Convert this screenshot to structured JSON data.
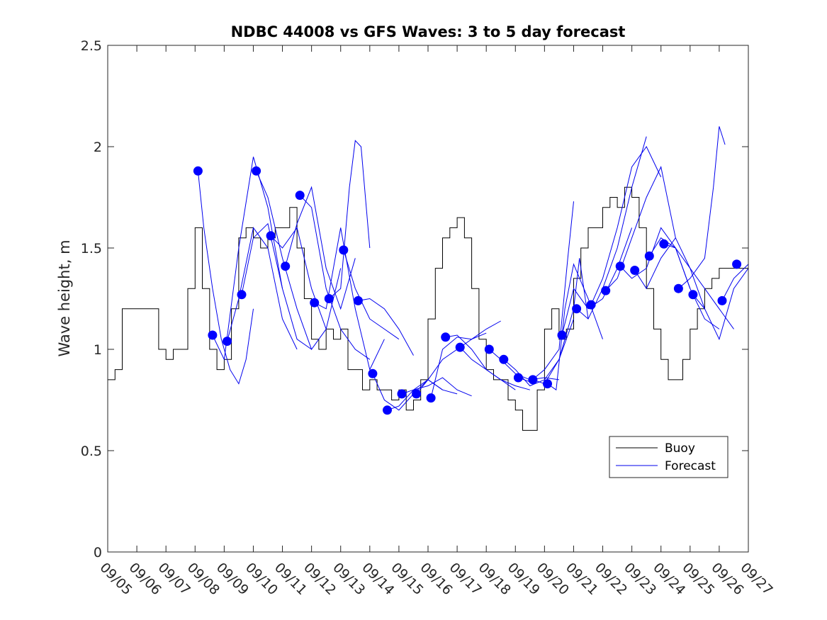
{
  "chart_data": {
    "type": "line",
    "title": "NDBC 44008 vs GFS Waves: 3 to 5 day forecast",
    "xlabel": "",
    "ylabel": "Wave height, m",
    "xlim": [
      5,
      27
    ],
    "ylim": [
      0,
      2.5
    ],
    "yticks": [
      0,
      0.5,
      1,
      1.5,
      2,
      2.5
    ],
    "ytick_labels": [
      "0",
      "0.5",
      "1",
      "1.5",
      "2",
      "2.5"
    ],
    "xticks": [
      5,
      6,
      7,
      8,
      9,
      10,
      11,
      12,
      13,
      14,
      15,
      16,
      17,
      18,
      19,
      20,
      21,
      22,
      23,
      24,
      25,
      26,
      27
    ],
    "xtick_labels": [
      "09/05",
      "09/06",
      "09/07",
      "09/08",
      "09/09",
      "09/10",
      "09/11",
      "09/12",
      "09/13",
      "09/14",
      "09/15",
      "09/16",
      "09/17",
      "09/18",
      "09/19",
      "09/20",
      "09/21",
      "09/22",
      "09/23",
      "09/24",
      "09/25",
      "09/26",
      "09/27"
    ],
    "grid": false,
    "legend": {
      "position": "bottom-right",
      "entries": [
        "Buoy",
        "Forecast"
      ]
    },
    "colors": {
      "buoy": "#000000",
      "forecast": "#0000ee",
      "markers": "#0000ff"
    },
    "series": [
      {
        "name": "Buoy",
        "x": [
          5.0,
          5.25,
          5.5,
          5.75,
          6.0,
          6.25,
          6.5,
          6.75,
          7.0,
          7.25,
          7.5,
          7.75,
          8.0,
          8.25,
          8.5,
          8.75,
          9.0,
          9.25,
          9.5,
          9.75,
          10.0,
          10.25,
          10.5,
          10.75,
          11.0,
          11.25,
          11.5,
          11.75,
          12.0,
          12.25,
          12.5,
          12.75,
          13.0,
          13.25,
          13.5,
          13.75,
          14.0,
          14.25,
          14.5,
          14.75,
          15.0,
          15.25,
          15.5,
          15.75,
          16.0,
          16.25,
          16.5,
          16.75,
          17.0,
          17.25,
          17.5,
          17.75,
          18.0,
          18.25,
          18.5,
          18.75,
          19.0,
          19.25,
          19.5,
          19.75,
          20.0,
          20.25,
          20.5,
          20.75,
          21.0,
          21.25,
          21.5,
          21.75,
          22.0,
          22.25,
          22.5,
          22.75,
          23.0,
          23.25,
          23.5,
          23.75,
          24.0,
          24.25,
          24.5,
          24.75,
          25.0,
          25.25,
          25.5,
          25.75,
          26.0,
          26.25,
          26.5,
          26.75,
          27.0
        ],
        "y": [
          0.85,
          0.9,
          1.2,
          1.2,
          1.2,
          1.2,
          1.2,
          1.0,
          0.95,
          1.0,
          1.0,
          1.3,
          1.6,
          1.3,
          1.0,
          0.9,
          0.95,
          1.2,
          1.55,
          1.6,
          1.55,
          1.5,
          1.55,
          1.6,
          1.6,
          1.7,
          1.5,
          1.25,
          1.05,
          1.0,
          1.1,
          1.05,
          1.1,
          0.9,
          0.9,
          0.8,
          0.85,
          0.8,
          0.8,
          0.75,
          0.8,
          0.7,
          0.75,
          0.85,
          1.15,
          1.4,
          1.55,
          1.6,
          1.65,
          1.55,
          1.3,
          1.05,
          0.9,
          0.85,
          0.85,
          0.75,
          0.7,
          0.6,
          0.6,
          0.8,
          1.1,
          1.2,
          1.05,
          1.1,
          1.35,
          1.5,
          1.6,
          1.6,
          1.7,
          1.75,
          1.7,
          1.8,
          1.75,
          1.6,
          1.3,
          1.1,
          0.95,
          0.85,
          0.85,
          0.95,
          1.1,
          1.2,
          1.3,
          1.35,
          1.4,
          1.4,
          1.4,
          1.4,
          1.4
        ]
      },
      {
        "name": "Forecast",
        "x": [
          8.1,
          8.3,
          8.6,
          8.9,
          9.2,
          9.5,
          9.75,
          10.0
        ],
        "y": [
          1.88,
          1.6,
          1.3,
          1.05,
          0.9,
          0.83,
          0.95,
          1.2
        ]
      },
      {
        "name": "Forecast",
        "x": [
          8.6,
          9.0,
          9.5,
          10.0,
          10.5,
          11.0
        ],
        "y": [
          1.07,
          0.95,
          1.5,
          1.95,
          1.7,
          1.3
        ]
      },
      {
        "name": "Forecast",
        "x": [
          9.1,
          9.5,
          10.0,
          10.5,
          11.0,
          11.5
        ],
        "y": [
          1.04,
          1.25,
          1.6,
          1.5,
          1.15,
          1.0
        ]
      },
      {
        "name": "Forecast",
        "x": [
          9.6,
          10.0,
          10.5,
          11.0,
          11.5,
          12.0
        ],
        "y": [
          1.27,
          1.55,
          1.62,
          1.3,
          1.05,
          1.0
        ]
      },
      {
        "name": "Forecast",
        "x": [
          10.1,
          10.5,
          11.0,
          11.5,
          12.0,
          12.5
        ],
        "y": [
          1.88,
          1.75,
          1.45,
          1.2,
          1.0,
          1.1
        ]
      },
      {
        "name": "Forecast",
        "x": [
          10.6,
          11.0,
          11.5,
          12.0,
          12.5,
          13.0
        ],
        "y": [
          1.56,
          1.5,
          1.6,
          1.3,
          1.1,
          1.4
        ]
      },
      {
        "name": "Forecast",
        "x": [
          11.1,
          11.5,
          12.0,
          12.5,
          13.0,
          13.5
        ],
        "y": [
          1.41,
          1.62,
          1.8,
          1.4,
          1.2,
          1.45
        ]
      },
      {
        "name": "Forecast",
        "x": [
          11.6,
          12.0,
          12.5,
          13.0,
          13.5,
          14.0
        ],
        "y": [
          1.76,
          1.7,
          1.3,
          1.1,
          1.0,
          0.95
        ]
      },
      {
        "name": "Forecast",
        "x": [
          12.1,
          12.5,
          13.0,
          13.5,
          14.0,
          14.5
        ],
        "y": [
          1.23,
          1.2,
          1.6,
          1.2,
          0.9,
          1.05
        ]
      },
      {
        "name": "Forecast",
        "x": [
          12.6,
          13.0,
          13.3,
          13.5,
          13.7,
          14.0
        ],
        "y": [
          1.25,
          1.3,
          1.8,
          2.03,
          2.0,
          1.5
        ]
      },
      {
        "name": "Forecast",
        "x": [
          13.1,
          13.5,
          14.0,
          14.5,
          15.0
        ],
        "y": [
          1.49,
          1.3,
          1.15,
          1.1,
          1.05
        ]
      },
      {
        "name": "Forecast",
        "x": [
          13.6,
          14.0,
          14.5,
          15.0,
          15.5
        ],
        "y": [
          1.24,
          1.25,
          1.2,
          1.1,
          0.97
        ]
      },
      {
        "name": "Forecast",
        "x": [
          14.1,
          14.5,
          15.0,
          15.5,
          16.0,
          16.5
        ],
        "y": [
          0.88,
          0.75,
          0.7,
          0.78,
          0.85,
          0.8
        ]
      },
      {
        "name": "Forecast",
        "x": [
          14.6,
          15.0,
          15.5,
          16.0,
          16.5,
          17.0
        ],
        "y": [
          0.7,
          0.72,
          0.8,
          0.85,
          0.8,
          0.78
        ]
      },
      {
        "name": "Forecast",
        "x": [
          15.1,
          15.5,
          16.0,
          16.5,
          17.0,
          17.5
        ],
        "y": [
          0.78,
          0.8,
          0.82,
          0.86,
          0.8,
          0.77
        ]
      },
      {
        "name": "Forecast",
        "x": [
          15.6,
          16.0,
          16.5,
          17.0,
          17.5,
          18.0
        ],
        "y": [
          0.78,
          0.85,
          0.95,
          1.0,
          1.05,
          1.08
        ]
      },
      {
        "name": "Forecast",
        "x": [
          16.1,
          16.5,
          17.0,
          17.5,
          18.0,
          18.5
        ],
        "y": [
          0.76,
          1.0,
          1.06,
          1.05,
          1.1,
          1.14
        ]
      },
      {
        "name": "Forecast",
        "x": [
          16.6,
          17.0,
          17.5,
          18.0,
          18.5,
          19.0
        ],
        "y": [
          1.06,
          1.07,
          1.0,
          0.9,
          0.85,
          0.8
        ]
      },
      {
        "name": "Forecast",
        "x": [
          17.1,
          17.5,
          18.0,
          18.5,
          19.0,
          19.5
        ],
        "y": [
          1.01,
          0.95,
          0.9,
          0.85,
          0.82,
          0.8
        ]
      },
      {
        "name": "Forecast",
        "x": [
          18.1,
          18.5,
          19.0,
          19.5,
          20.0,
          20.5
        ],
        "y": [
          1.0,
          0.95,
          0.88,
          0.85,
          0.86,
          0.85
        ]
      },
      {
        "name": "Forecast",
        "x": [
          18.6,
          19.0,
          19.5,
          20.0,
          20.5,
          21.0
        ],
        "y": [
          0.95,
          0.9,
          0.82,
          0.85,
          0.95,
          1.15
        ]
      },
      {
        "name": "Forecast",
        "x": [
          19.1,
          19.5,
          20.0,
          20.5,
          20.8,
          21.0
        ],
        "y": [
          0.86,
          0.84,
          0.9,
          1.0,
          1.45,
          1.73
        ]
      },
      {
        "name": "Forecast",
        "x": [
          19.6,
          20.0,
          20.5,
          21.0,
          21.2,
          21.5
        ],
        "y": [
          0.85,
          0.83,
          0.95,
          1.2,
          1.45,
          1.15
        ]
      },
      {
        "name": "Forecast",
        "x": [
          20.1,
          20.4,
          20.7,
          21.0,
          21.5,
          22.0
        ],
        "y": [
          0.83,
          0.8,
          1.2,
          1.42,
          1.25,
          1.05
        ]
      },
      {
        "name": "Forecast",
        "x": [
          20.6,
          21.0,
          21.5,
          22.0,
          22.5,
          23.0
        ],
        "y": [
          1.07,
          1.3,
          1.2,
          1.25,
          1.4,
          1.6
        ]
      },
      {
        "name": "Forecast",
        "x": [
          21.1,
          21.5,
          22.0,
          22.5,
          23.0,
          23.5
        ],
        "y": [
          1.2,
          1.15,
          1.3,
          1.5,
          1.8,
          2.05
        ]
      },
      {
        "name": "Forecast",
        "x": [
          21.6,
          22.0,
          22.5,
          23.0,
          23.5,
          24.0
        ],
        "y": [
          1.22,
          1.35,
          1.6,
          1.9,
          2.0,
          1.85
        ]
      },
      {
        "name": "Forecast",
        "x": [
          22.1,
          22.5,
          23.0,
          23.5,
          24.0,
          24.5
        ],
        "y": [
          1.29,
          1.35,
          1.55,
          1.75,
          1.9,
          1.55
        ]
      },
      {
        "name": "Forecast",
        "x": [
          22.6,
          23.0,
          23.5,
          24.0,
          24.5,
          25.0
        ],
        "y": [
          1.41,
          1.35,
          1.4,
          1.6,
          1.5,
          1.3
        ]
      },
      {
        "name": "Forecast",
        "x": [
          23.1,
          23.5,
          24.0,
          24.5,
          25.0,
          25.5
        ],
        "y": [
          1.39,
          1.3,
          1.45,
          1.55,
          1.4,
          1.2
        ]
      },
      {
        "name": "Forecast",
        "x": [
          23.6,
          24.0,
          24.5,
          25.0,
          25.5,
          26.0
        ],
        "y": [
          1.46,
          1.55,
          1.5,
          1.3,
          1.15,
          1.1
        ]
      },
      {
        "name": "Forecast",
        "x": [
          24.1,
          24.5,
          25.0,
          25.5,
          26.0,
          26.5
        ],
        "y": [
          1.52,
          1.5,
          1.4,
          1.3,
          1.2,
          1.1
        ]
      },
      {
        "name": "Forecast",
        "x": [
          24.6,
          25.0,
          25.5,
          25.8,
          26.0,
          26.2
        ],
        "y": [
          1.3,
          1.35,
          1.45,
          1.8,
          2.1,
          2.01
        ]
      },
      {
        "name": "Forecast",
        "x": [
          25.1,
          25.5,
          26.0,
          26.5,
          27.0
        ],
        "y": [
          1.27,
          1.2,
          1.05,
          1.3,
          1.4
        ]
      },
      {
        "name": "Forecast",
        "x": [
          26.1,
          26.5,
          27.0
        ],
        "y": [
          1.24,
          1.35,
          1.42
        ]
      }
    ],
    "markers": {
      "x": [
        8.1,
        8.6,
        9.1,
        9.6,
        10.1,
        10.6,
        11.1,
        11.6,
        12.1,
        12.6,
        13.1,
        13.6,
        14.1,
        14.6,
        15.1,
        15.6,
        16.1,
        16.6,
        17.1,
        18.1,
        18.6,
        19.1,
        19.6,
        20.1,
        20.6,
        21.1,
        21.6,
        22.1,
        22.6,
        23.1,
        23.6,
        24.1,
        24.6,
        25.1,
        26.1,
        26.6
      ],
      "y": [
        1.88,
        1.07,
        1.04,
        1.27,
        1.88,
        1.56,
        1.41,
        1.76,
        1.23,
        1.25,
        1.49,
        1.24,
        0.88,
        0.7,
        0.78,
        0.78,
        0.76,
        1.06,
        1.01,
        1.0,
        0.95,
        0.86,
        0.85,
        0.83,
        1.07,
        1.2,
        1.22,
        1.29,
        1.41,
        1.39,
        1.46,
        1.52,
        1.3,
        1.27,
        1.24,
        1.42
      ]
    }
  }
}
